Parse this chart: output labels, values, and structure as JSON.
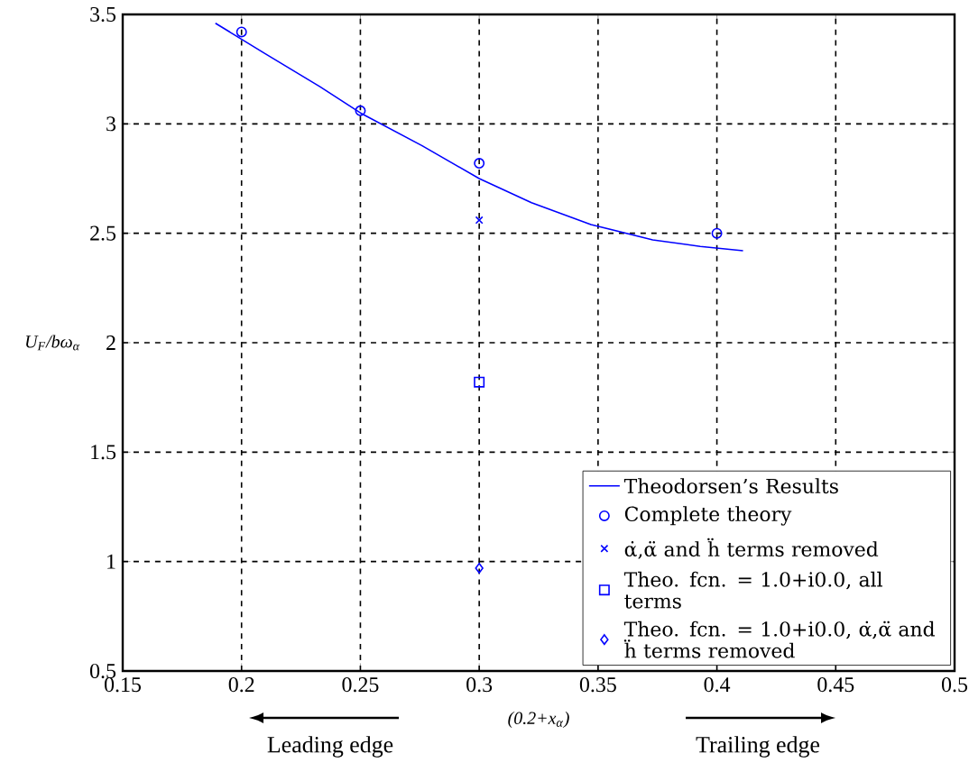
{
  "chart_data": {
    "type": "scatter",
    "xlabel": "(0.2+x$_{α}$)",
    "ylabel": "U$_{F}$/bω$_{α}$",
    "xlim": [
      0.15,
      0.5
    ],
    "ylim": [
      0.5,
      3.5
    ],
    "xticks": [
      0.15,
      0.2,
      0.25,
      0.3,
      0.35,
      0.4,
      0.45,
      0.5
    ],
    "yticks": [
      0.5,
      1,
      1.5,
      2,
      2.5,
      3,
      3.5
    ],
    "grid": true,
    "legend": "bottom right",
    "annotations": [
      "Leading edge",
      "Trailing edge"
    ],
    "series": [
      {
        "name": "Theodorsen’s Results",
        "type": "line",
        "marker": "none",
        "line_style": "solid",
        "color": "#0000ff",
        "x": [
          0.189,
          0.21,
          0.233,
          0.25,
          0.276,
          0.3,
          0.322,
          0.347,
          0.373,
          0.393,
          0.411
        ],
        "values": [
          3.46,
          3.32,
          3.17,
          3.05,
          2.9,
          2.75,
          2.64,
          2.54,
          2.47,
          2.44,
          2.42
        ]
      },
      {
        "name": "Complete theory",
        "marker": "circle",
        "color": "#0000ff",
        "x": [
          0.2,
          0.25,
          0.3,
          0.4
        ],
        "values": [
          3.42,
          3.06,
          2.82,
          2.5
        ]
      },
      {
        "name": "α̇,α̈ and ḧ terms removed",
        "marker": "cross",
        "color": "#0000ff",
        "x": [
          0.3
        ],
        "values": [
          2.56
        ]
      },
      {
        "name": "Theo. fcn. = 1.0+i0.0, all terms",
        "marker": "square",
        "color": "#0000ff",
        "x": [
          0.3
        ],
        "values": [
          1.82
        ]
      },
      {
        "name": "Theo. fcn. = 1.0+i0.0, α̇,α̈ and ḧ terms removed",
        "marker": "diamond",
        "color": "#0000ff",
        "x": [
          0.3
        ],
        "values": [
          0.97
        ]
      }
    ]
  }
}
